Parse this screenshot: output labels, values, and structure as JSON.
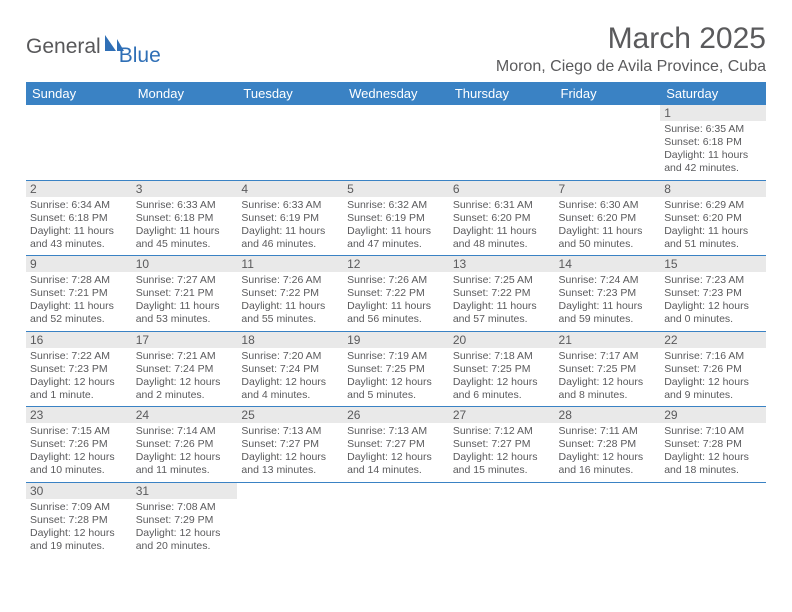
{
  "logo": {
    "part1": "General",
    "part2": "Blue"
  },
  "title": "March 2025",
  "location": "Moron, Ciego de Avila Province, Cuba",
  "colors": {
    "header_bg": "#3a82c4",
    "header_text": "#ffffff",
    "border": "#3a82c4",
    "daynum_bg": "#e9e9e9",
    "text": "#5a5a5c",
    "logo_gray": "#58585a",
    "logo_blue": "#2f6fb6",
    "background": "#ffffff"
  },
  "fonts": {
    "title_size": 30,
    "location_size": 16,
    "header_size": 13,
    "daynum_size": 12,
    "body_size": 10.5
  },
  "days_of_week": [
    "Sunday",
    "Monday",
    "Tuesday",
    "Wednesday",
    "Thursday",
    "Friday",
    "Saturday"
  ],
  "weeks": [
    [
      null,
      null,
      null,
      null,
      null,
      null,
      {
        "n": "1",
        "sr": "Sunrise: 6:35 AM",
        "ss": "Sunset: 6:18 PM",
        "dl": "Daylight: 11 hours and 42 minutes."
      }
    ],
    [
      {
        "n": "2",
        "sr": "Sunrise: 6:34 AM",
        "ss": "Sunset: 6:18 PM",
        "dl": "Daylight: 11 hours and 43 minutes."
      },
      {
        "n": "3",
        "sr": "Sunrise: 6:33 AM",
        "ss": "Sunset: 6:18 PM",
        "dl": "Daylight: 11 hours and 45 minutes."
      },
      {
        "n": "4",
        "sr": "Sunrise: 6:33 AM",
        "ss": "Sunset: 6:19 PM",
        "dl": "Daylight: 11 hours and 46 minutes."
      },
      {
        "n": "5",
        "sr": "Sunrise: 6:32 AM",
        "ss": "Sunset: 6:19 PM",
        "dl": "Daylight: 11 hours and 47 minutes."
      },
      {
        "n": "6",
        "sr": "Sunrise: 6:31 AM",
        "ss": "Sunset: 6:20 PM",
        "dl": "Daylight: 11 hours and 48 minutes."
      },
      {
        "n": "7",
        "sr": "Sunrise: 6:30 AM",
        "ss": "Sunset: 6:20 PM",
        "dl": "Daylight: 11 hours and 50 minutes."
      },
      {
        "n": "8",
        "sr": "Sunrise: 6:29 AM",
        "ss": "Sunset: 6:20 PM",
        "dl": "Daylight: 11 hours and 51 minutes."
      }
    ],
    [
      {
        "n": "9",
        "sr": "Sunrise: 7:28 AM",
        "ss": "Sunset: 7:21 PM",
        "dl": "Daylight: 11 hours and 52 minutes."
      },
      {
        "n": "10",
        "sr": "Sunrise: 7:27 AM",
        "ss": "Sunset: 7:21 PM",
        "dl": "Daylight: 11 hours and 53 minutes."
      },
      {
        "n": "11",
        "sr": "Sunrise: 7:26 AM",
        "ss": "Sunset: 7:22 PM",
        "dl": "Daylight: 11 hours and 55 minutes."
      },
      {
        "n": "12",
        "sr": "Sunrise: 7:26 AM",
        "ss": "Sunset: 7:22 PM",
        "dl": "Daylight: 11 hours and 56 minutes."
      },
      {
        "n": "13",
        "sr": "Sunrise: 7:25 AM",
        "ss": "Sunset: 7:22 PM",
        "dl": "Daylight: 11 hours and 57 minutes."
      },
      {
        "n": "14",
        "sr": "Sunrise: 7:24 AM",
        "ss": "Sunset: 7:23 PM",
        "dl": "Daylight: 11 hours and 59 minutes."
      },
      {
        "n": "15",
        "sr": "Sunrise: 7:23 AM",
        "ss": "Sunset: 7:23 PM",
        "dl": "Daylight: 12 hours and 0 minutes."
      }
    ],
    [
      {
        "n": "16",
        "sr": "Sunrise: 7:22 AM",
        "ss": "Sunset: 7:23 PM",
        "dl": "Daylight: 12 hours and 1 minute."
      },
      {
        "n": "17",
        "sr": "Sunrise: 7:21 AM",
        "ss": "Sunset: 7:24 PM",
        "dl": "Daylight: 12 hours and 2 minutes."
      },
      {
        "n": "18",
        "sr": "Sunrise: 7:20 AM",
        "ss": "Sunset: 7:24 PM",
        "dl": "Daylight: 12 hours and 4 minutes."
      },
      {
        "n": "19",
        "sr": "Sunrise: 7:19 AM",
        "ss": "Sunset: 7:25 PM",
        "dl": "Daylight: 12 hours and 5 minutes."
      },
      {
        "n": "20",
        "sr": "Sunrise: 7:18 AM",
        "ss": "Sunset: 7:25 PM",
        "dl": "Daylight: 12 hours and 6 minutes."
      },
      {
        "n": "21",
        "sr": "Sunrise: 7:17 AM",
        "ss": "Sunset: 7:25 PM",
        "dl": "Daylight: 12 hours and 8 minutes."
      },
      {
        "n": "22",
        "sr": "Sunrise: 7:16 AM",
        "ss": "Sunset: 7:26 PM",
        "dl": "Daylight: 12 hours and 9 minutes."
      }
    ],
    [
      {
        "n": "23",
        "sr": "Sunrise: 7:15 AM",
        "ss": "Sunset: 7:26 PM",
        "dl": "Daylight: 12 hours and 10 minutes."
      },
      {
        "n": "24",
        "sr": "Sunrise: 7:14 AM",
        "ss": "Sunset: 7:26 PM",
        "dl": "Daylight: 12 hours and 11 minutes."
      },
      {
        "n": "25",
        "sr": "Sunrise: 7:13 AM",
        "ss": "Sunset: 7:27 PM",
        "dl": "Daylight: 12 hours and 13 minutes."
      },
      {
        "n": "26",
        "sr": "Sunrise: 7:13 AM",
        "ss": "Sunset: 7:27 PM",
        "dl": "Daylight: 12 hours and 14 minutes."
      },
      {
        "n": "27",
        "sr": "Sunrise: 7:12 AM",
        "ss": "Sunset: 7:27 PM",
        "dl": "Daylight: 12 hours and 15 minutes."
      },
      {
        "n": "28",
        "sr": "Sunrise: 7:11 AM",
        "ss": "Sunset: 7:28 PM",
        "dl": "Daylight: 12 hours and 16 minutes."
      },
      {
        "n": "29",
        "sr": "Sunrise: 7:10 AM",
        "ss": "Sunset: 7:28 PM",
        "dl": "Daylight: 12 hours and 18 minutes."
      }
    ],
    [
      {
        "n": "30",
        "sr": "Sunrise: 7:09 AM",
        "ss": "Sunset: 7:28 PM",
        "dl": "Daylight: 12 hours and 19 minutes."
      },
      {
        "n": "31",
        "sr": "Sunrise: 7:08 AM",
        "ss": "Sunset: 7:29 PM",
        "dl": "Daylight: 12 hours and 20 minutes."
      },
      null,
      null,
      null,
      null,
      null
    ]
  ]
}
